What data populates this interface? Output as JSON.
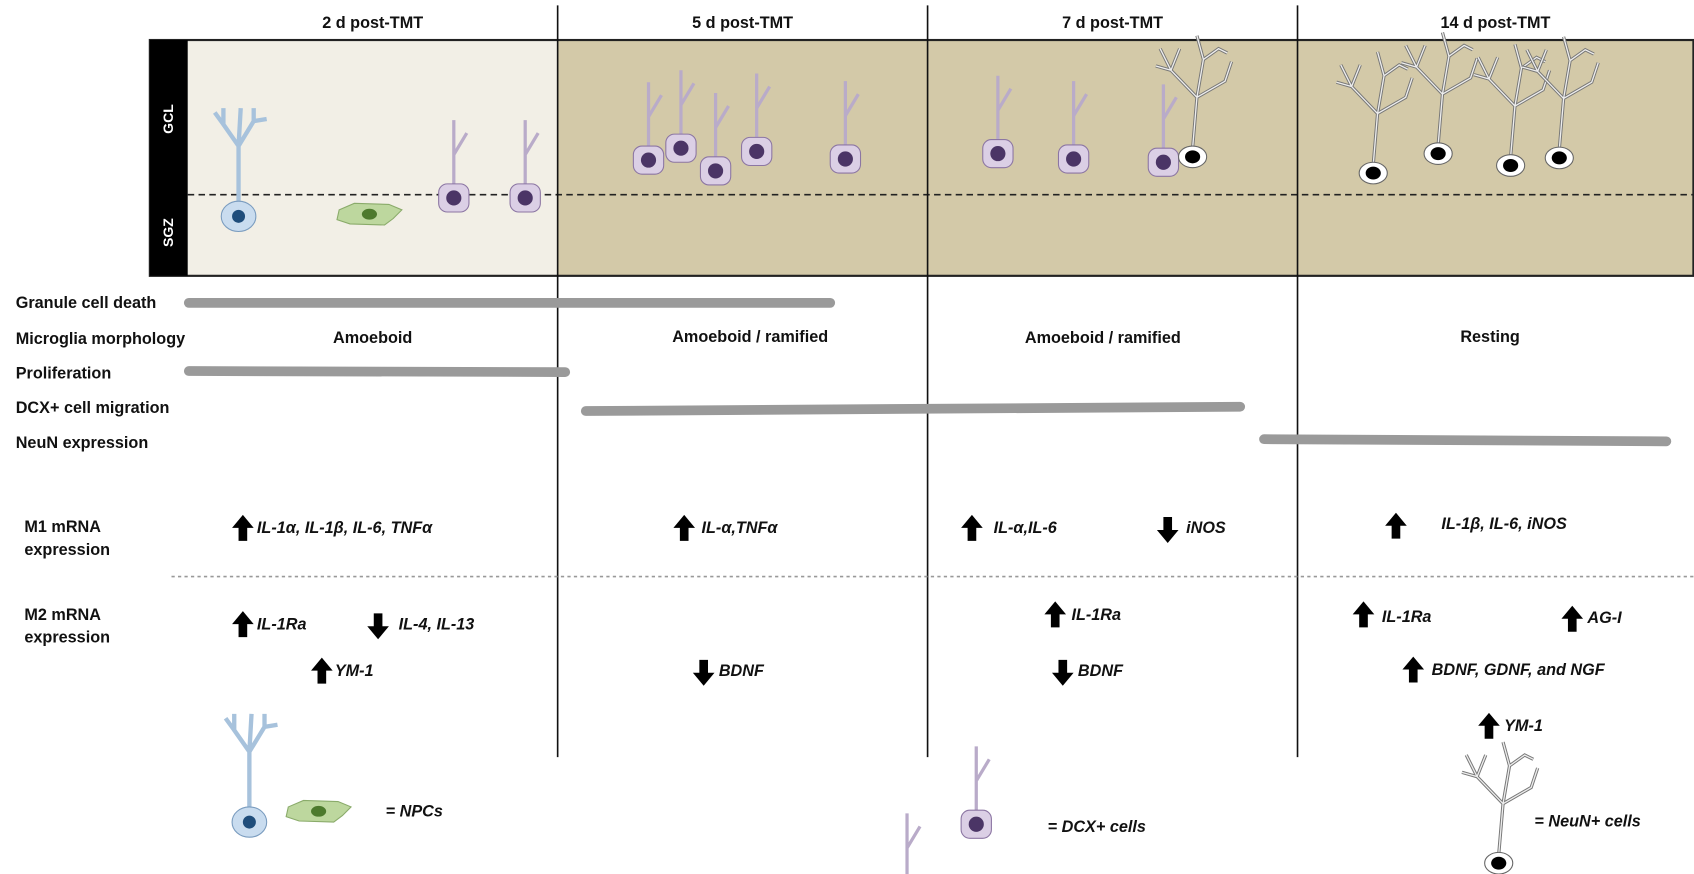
{
  "columns": [
    "2 d post-TMT",
    "5 d post-TMT",
    "7 d post-TMT",
    "14 d post-TMT"
  ],
  "layers": [
    "GCL",
    "SGZ"
  ],
  "rows": [
    "Granule cell death",
    "Microglia morphology",
    "Proliferation",
    "DCX+ cell migration",
    "NeuN expression"
  ],
  "microglia": [
    "Amoeboid",
    "Amoeboid / ramified",
    "Amoeboid / ramified",
    "Resting"
  ],
  "m1_label": [
    "M1 mRNA",
    "expression"
  ],
  "m2_label": [
    "M2 mRNA",
    "expression"
  ],
  "m1": [
    "IL-1α, IL-1β, IL-6, TNFα",
    "IL-α,TNFα",
    "IL-α,IL-6",
    "iNOS",
    "IL-1β, IL-6, iNOS"
  ],
  "m2": [
    "IL-1Ra",
    "IL-4, IL-13",
    "YM-1",
    "BDNF",
    "IL-1Ra",
    "BDNF",
    "IL-1Ra",
    "AG-I",
    "BDNF, GDNF, and NGF",
    "YM-1"
  ],
  "legend": [
    "= NPCs",
    "= DCX+ cells",
    "= NeuN+ cells"
  ]
}
